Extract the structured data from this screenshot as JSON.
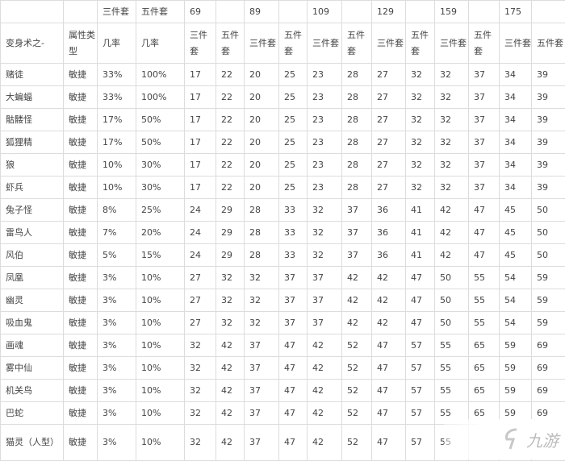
{
  "header_row1": [
    "",
    "",
    "三件套",
    "五件套",
    "69",
    "",
    "89",
    "",
    "109",
    "",
    "129",
    "",
    "159",
    "",
    "175",
    ""
  ],
  "header_row2": [
    "变身术之-",
    "属性类型",
    "几率",
    "几率",
    "三件套",
    "五件套",
    "三件套",
    "五件套",
    "三件套",
    "五件套",
    "三件套",
    "五件套",
    "三件套",
    "五件套",
    "三件套",
    "五件套"
  ],
  "rows": [
    [
      "赌徒",
      "敏捷",
      "33%",
      "100%",
      "17",
      "22",
      "20",
      "25",
      "23",
      "28",
      "27",
      "32",
      "32",
      "37",
      "34",
      "39"
    ],
    [
      "大蝙蝠",
      "敏捷",
      "33%",
      "100%",
      "17",
      "22",
      "20",
      "25",
      "23",
      "28",
      "27",
      "32",
      "32",
      "37",
      "34",
      "39"
    ],
    [
      "骷髅怪",
      "敏捷",
      "17%",
      "50%",
      "17",
      "22",
      "20",
      "25",
      "23",
      "28",
      "27",
      "32",
      "32",
      "37",
      "34",
      "39"
    ],
    [
      "狐狸精",
      "敏捷",
      "17%",
      "50%",
      "17",
      "22",
      "20",
      "25",
      "23",
      "28",
      "27",
      "32",
      "32",
      "37",
      "34",
      "39"
    ],
    [
      "狼",
      "敏捷",
      "10%",
      "30%",
      "17",
      "22",
      "20",
      "25",
      "23",
      "28",
      "27",
      "32",
      "32",
      "37",
      "34",
      "39"
    ],
    [
      "虾兵",
      "敏捷",
      "10%",
      "30%",
      "17",
      "22",
      "20",
      "25",
      "23",
      "28",
      "27",
      "32",
      "32",
      "37",
      "34",
      "39"
    ],
    [
      "兔子怪",
      "敏捷",
      "8%",
      "25%",
      "24",
      "29",
      "28",
      "33",
      "32",
      "37",
      "36",
      "41",
      "42",
      "47",
      "45",
      "50"
    ],
    [
      "雷鸟人",
      "敏捷",
      "7%",
      "20%",
      "24",
      "29",
      "28",
      "33",
      "32",
      "37",
      "36",
      "41",
      "42",
      "47",
      "45",
      "50"
    ],
    [
      "风伯",
      "敏捷",
      "5%",
      "15%",
      "24",
      "29",
      "28",
      "33",
      "32",
      "37",
      "36",
      "41",
      "42",
      "47",
      "45",
      "50"
    ],
    [
      "凤凰",
      "敏捷",
      "3%",
      "10%",
      "27",
      "32",
      "32",
      "37",
      "37",
      "42",
      "42",
      "47",
      "50",
      "55",
      "54",
      "59"
    ],
    [
      "幽灵",
      "敏捷",
      "3%",
      "10%",
      "27",
      "32",
      "32",
      "37",
      "37",
      "42",
      "42",
      "47",
      "50",
      "55",
      "54",
      "59"
    ],
    [
      "吸血鬼",
      "敏捷",
      "3%",
      "10%",
      "27",
      "32",
      "32",
      "37",
      "37",
      "42",
      "42",
      "47",
      "50",
      "55",
      "54",
      "59"
    ],
    [
      "画魂",
      "敏捷",
      "3%",
      "10%",
      "32",
      "42",
      "37",
      "47",
      "42",
      "52",
      "47",
      "57",
      "55",
      "65",
      "59",
      "69"
    ],
    [
      "雾中仙",
      "敏捷",
      "3%",
      "10%",
      "32",
      "42",
      "37",
      "47",
      "42",
      "52",
      "47",
      "57",
      "55",
      "65",
      "59",
      "69"
    ],
    [
      "机关鸟",
      "敏捷",
      "3%",
      "10%",
      "32",
      "42",
      "37",
      "47",
      "42",
      "52",
      "47",
      "57",
      "55",
      "65",
      "59",
      "69"
    ],
    [
      "巴蛇",
      "敏捷",
      "3%",
      "10%",
      "32",
      "42",
      "37",
      "47",
      "42",
      "52",
      "47",
      "57",
      "55",
      "65",
      "59",
      "69"
    ],
    [
      "猫灵（人型）",
      "敏捷",
      "3%",
      "10%",
      "32",
      "42",
      "37",
      "47",
      "42",
      "52",
      "47",
      "57",
      "55",
      "",
      "",
      ""
    ]
  ],
  "watermark": {
    "text": "九游",
    "icon": "jiuyou-logo-icon"
  }
}
